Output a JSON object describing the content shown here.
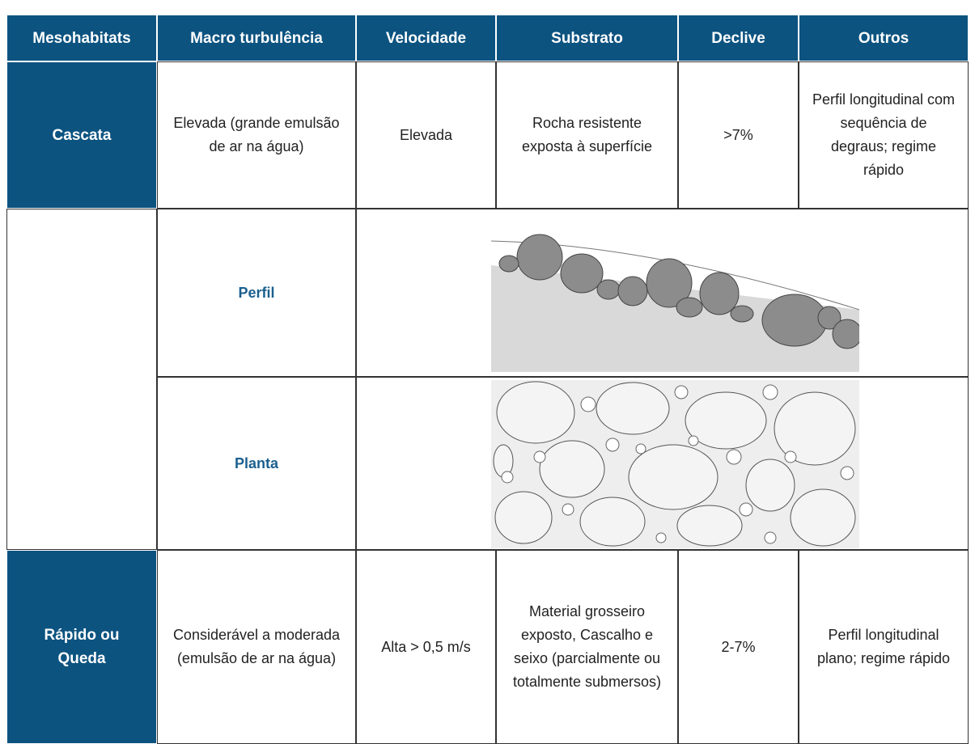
{
  "table": {
    "columns": [
      "Mesohabitats",
      "Macro turbulência",
      "Velocidade",
      "Substrato",
      "Declive",
      "Outros"
    ],
    "rows": [
      [
        "Cascata",
        "Elevada (grande emulsão de ar na água)",
        "Elevada",
        "Rocha resistente exposta à superfície",
        ">7%",
        "Perfil longitudinal com sequência de degraus; regime rápido"
      ],
      [
        "Rápido ou Queda",
        "Considerável a moderada (emulsão de ar na água)",
        "Alta > 0,5 m/s",
        "Material grosseiro exposto, Cascalho e seixo (parcialmente ou totalmente submersos)",
        "2-7%",
        "Perfil longitudinal plano; regime rápido"
      ]
    ],
    "figures": [
      "Perfil",
      "Planta"
    ]
  }
}
